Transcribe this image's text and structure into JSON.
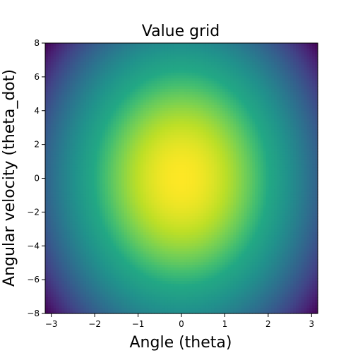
{
  "chart_data": {
    "type": "heatmap",
    "title": "Value grid",
    "xlabel": "Angle (theta)",
    "ylabel": "Angular velocity (theta_dot)",
    "xlim": [
      -3.1416,
      3.1416
    ],
    "ylim": [
      -8,
      8
    ],
    "xticks": [
      -3,
      -2,
      -1,
      0,
      1,
      2,
      3
    ],
    "xtick_labels": [
      "−3",
      "−2",
      "−1",
      "0",
      "1",
      "2",
      "3"
    ],
    "yticks": [
      -8,
      -6,
      -4,
      -2,
      0,
      2,
      4,
      6,
      8
    ],
    "ytick_labels": [
      "−8",
      "−6",
      "−4",
      "−2",
      "0",
      "2",
      "4",
      "6",
      "8"
    ],
    "colormap": "viridis",
    "grid": false,
    "grid_resolution": 100,
    "value_function": "-(theta^2 + 0.1*theta_dot^2)",
    "peak": {
      "theta": 0,
      "theta_dot": 0
    },
    "colorbar": false
  }
}
